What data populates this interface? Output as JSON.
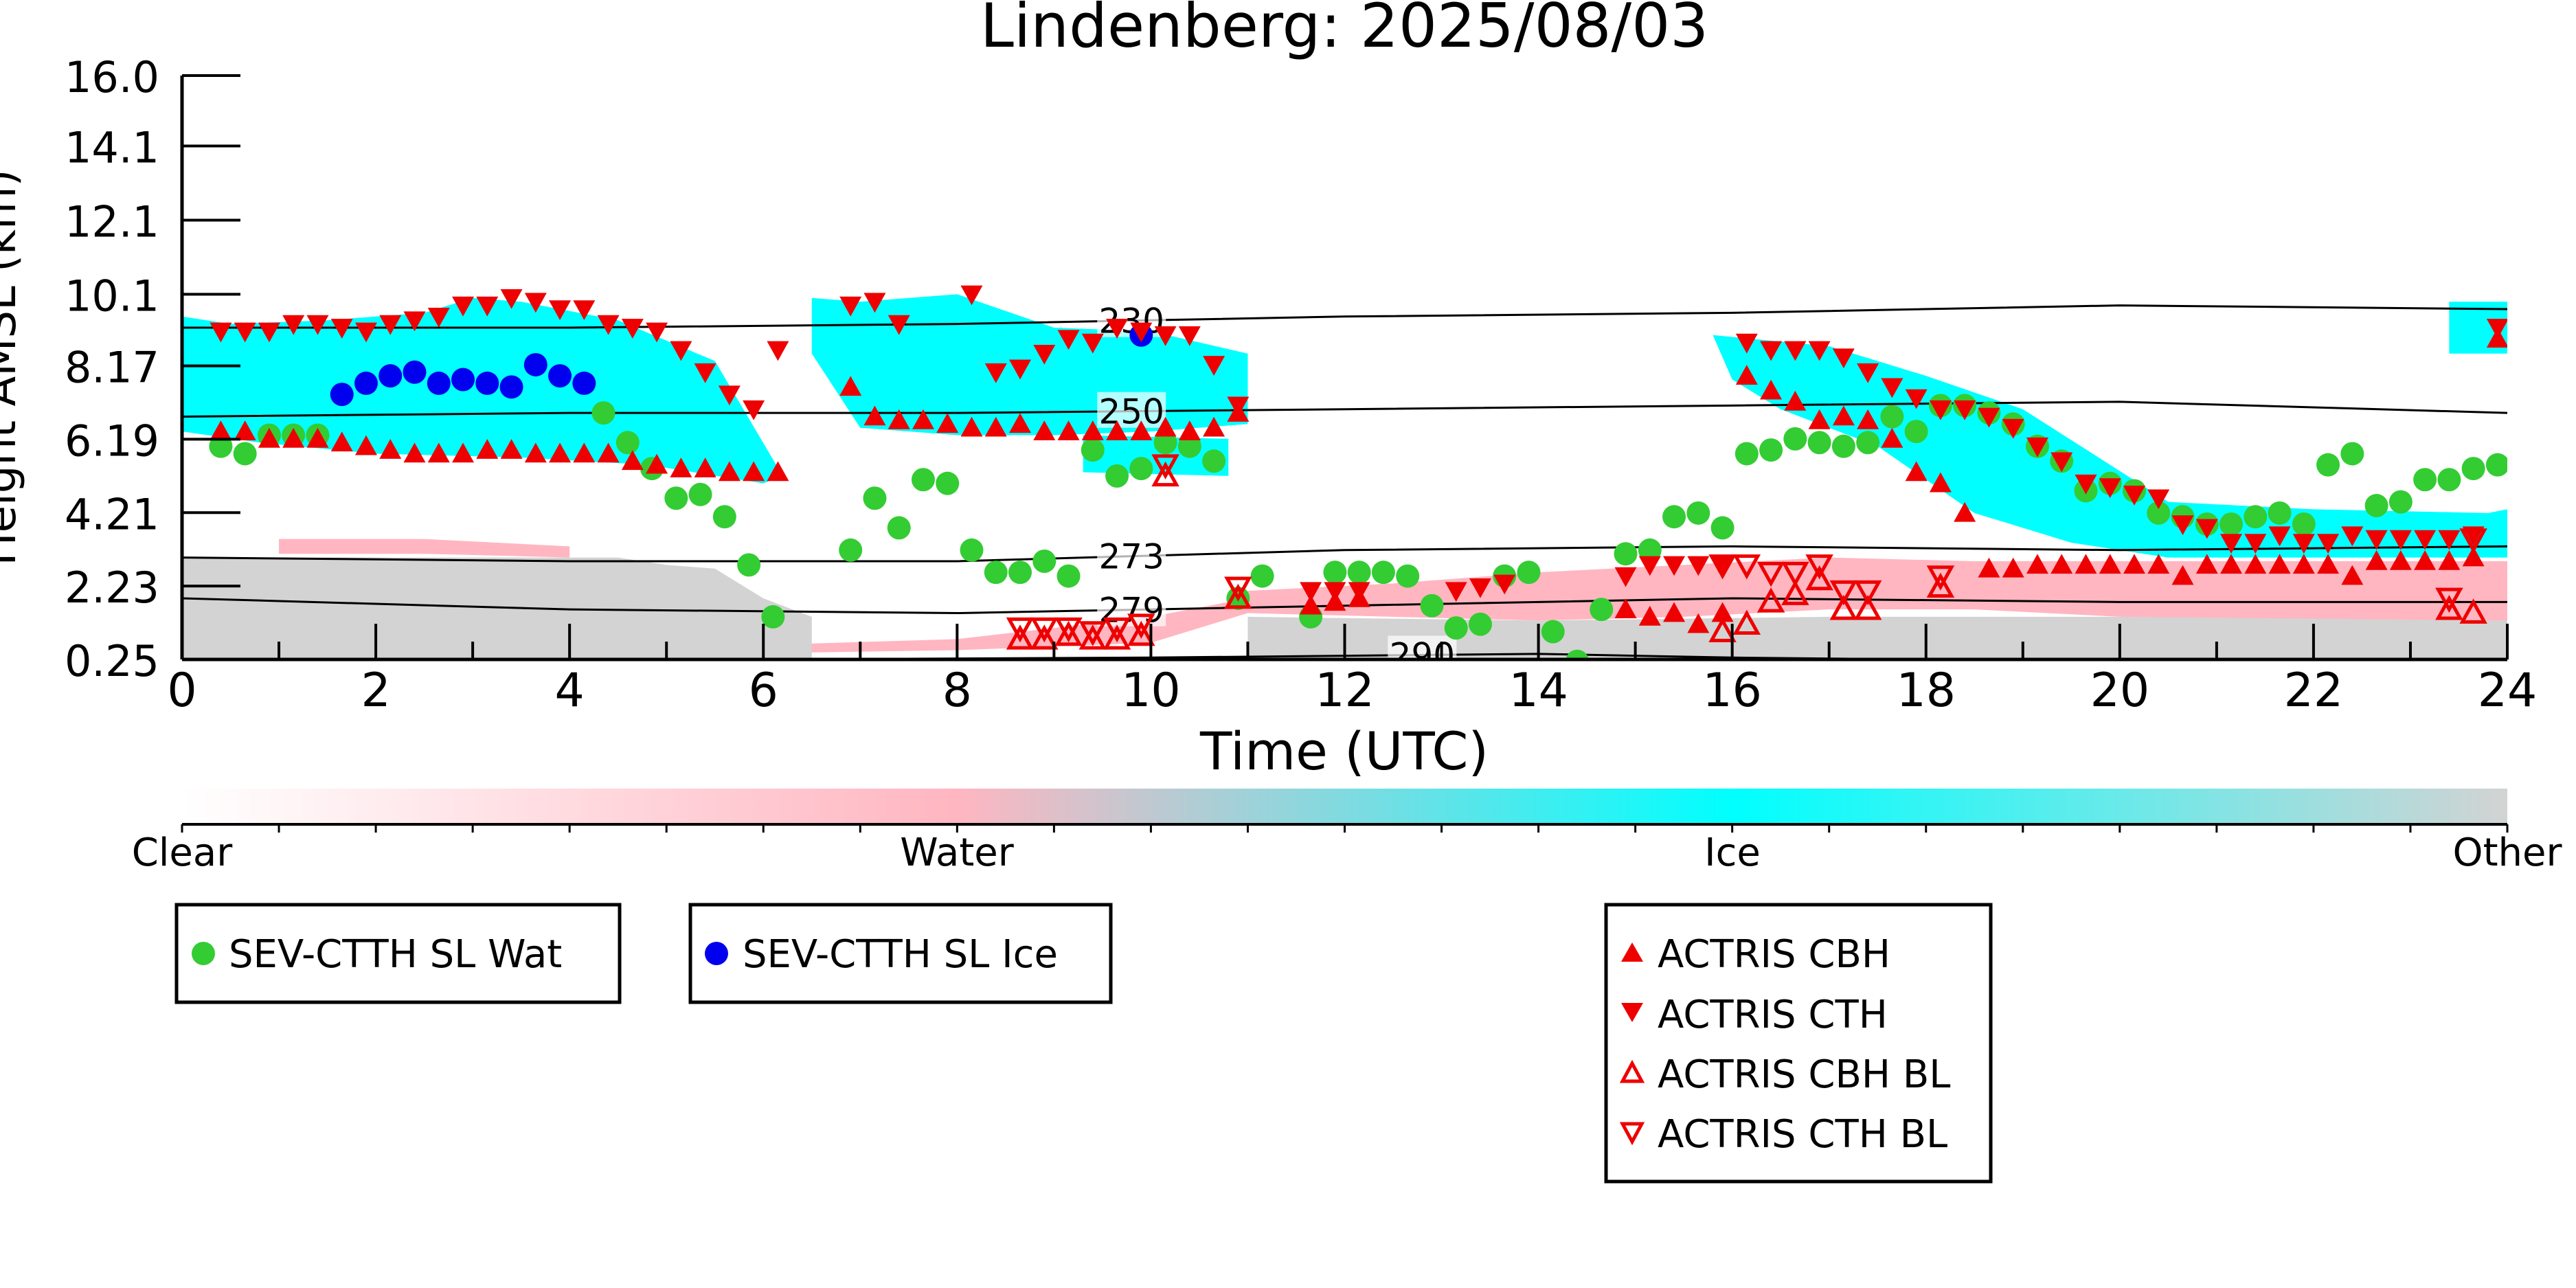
{
  "chart_data": {
    "type": "scatter",
    "title": "Lindenberg: 2025/08/03",
    "xlabel": "Time (UTC)",
    "ylabel": "Height AMSL (km)",
    "xlim": [
      0,
      24
    ],
    "x_ticks": [
      0,
      2,
      4,
      6,
      8,
      10,
      12,
      14,
      16,
      18,
      20,
      22,
      24
    ],
    "y_tick_labels": [
      "16.0",
      "14.1",
      "12.1",
      "10.1",
      "8.17",
      "6.19",
      "4.21",
      "2.23",
      "0.25"
    ],
    "y_tick_values": [
      16.0,
      14.1,
      12.1,
      10.1,
      8.17,
      6.19,
      4.21,
      2.23,
      0.25
    ],
    "ylim": [
      0.25,
      16.0
    ],
    "colorbar": {
      "labels": [
        "Clear",
        "Water",
        "Ice",
        "Other"
      ],
      "colors": [
        "#ffffff",
        "#ffb6c1",
        "#00ffff",
        "#d3d3d3"
      ]
    },
    "contours": [
      {
        "label": "230",
        "x": [
          0,
          4,
          8,
          12,
          16,
          20,
          24
        ],
        "y": [
          9.2,
          9.2,
          9.3,
          9.5,
          9.6,
          9.8,
          9.7
        ]
      },
      {
        "label": "250",
        "x": [
          0,
          4,
          8,
          12,
          16,
          20,
          24
        ],
        "y": [
          6.8,
          6.9,
          6.9,
          7.0,
          7.1,
          7.2,
          6.9
        ]
      },
      {
        "label": "273",
        "x": [
          0,
          4,
          8,
          12,
          16,
          20,
          24
        ],
        "y": [
          3.0,
          2.9,
          2.9,
          3.2,
          3.3,
          3.2,
          3.3
        ]
      },
      {
        "label": "279",
        "x": [
          0,
          4,
          8,
          12,
          16,
          20,
          24
        ],
        "y": [
          1.9,
          1.6,
          1.5,
          1.7,
          1.9,
          1.8,
          1.8
        ]
      },
      {
        "label": "290",
        "x": [
          0,
          6,
          10,
          12,
          14,
          16,
          18
        ],
        "y": [
          0.25,
          0.25,
          0.3,
          0.35,
          0.4,
          0.3,
          0.25
        ]
      }
    ],
    "series": [
      {
        "name": "SEV-CTTH SL Wat",
        "color": "#33cc33",
        "marker": "circle",
        "x": [
          0.4,
          0.65,
          0.9,
          1.15,
          1.4,
          4.35,
          4.6,
          4.85,
          5.1,
          5.35,
          5.6,
          5.85,
          6.1,
          6.9,
          7.15,
          7.4,
          7.65,
          7.9,
          8.15,
          8.4,
          8.65,
          8.9,
          9.15,
          9.4,
          9.65,
          9.9,
          10.15,
          10.4,
          10.65,
          10.9,
          11.15,
          11.65,
          11.9,
          12.15,
          12.4,
          12.65,
          12.9,
          13.15,
          13.4,
          13.65,
          13.9,
          14.15,
          14.4,
          14.65,
          14.9,
          15.15,
          15.4,
          15.65,
          15.9,
          16.15,
          16.4,
          16.65,
          16.9,
          17.15,
          17.4,
          17.65,
          17.9,
          18.15,
          18.4,
          18.65,
          18.9,
          19.15,
          19.4,
          19.65,
          19.9,
          20.15,
          20.4,
          20.65,
          20.9,
          21.15,
          21.4,
          21.65,
          21.9,
          22.15,
          22.4,
          22.65,
          22.9,
          23.15,
          23.4,
          23.65,
          23.9
        ],
        "y": [
          6.0,
          5.8,
          6.3,
          6.3,
          6.3,
          6.9,
          6.1,
          5.4,
          4.6,
          4.7,
          4.1,
          2.8,
          1.4,
          3.2,
          4.6,
          3.8,
          5.1,
          5.0,
          3.2,
          2.6,
          2.6,
          2.9,
          2.5,
          5.9,
          5.2,
          5.4,
          6.1,
          6.0,
          5.6,
          1.9,
          2.5,
          1.4,
          2.6,
          2.6,
          2.6,
          2.5,
          1.7,
          1.1,
          1.2,
          2.5,
          2.6,
          1.0,
          0.2,
          1.6,
          3.1,
          3.2,
          4.1,
          4.2,
          3.8,
          5.8,
          5.9,
          6.2,
          6.1,
          6.0,
          6.1,
          6.8,
          6.4,
          7.1,
          7.1,
          6.9,
          6.6,
          6.0,
          5.6,
          4.8,
          5.0,
          4.8,
          4.2,
          4.1,
          3.9,
          3.9,
          4.1,
          4.2,
          3.9,
          5.5,
          5.8,
          4.4,
          4.5,
          5.1,
          5.1,
          5.4,
          5.5
        ]
      },
      {
        "name": "SEV-CTTH SL Ice",
        "color": "#0000ee",
        "marker": "circle",
        "x": [
          1.65,
          1.9,
          2.15,
          2.4,
          2.65,
          2.9,
          3.15,
          3.4,
          3.65,
          3.9,
          4.15,
          9.9
        ],
        "y": [
          7.4,
          7.7,
          7.9,
          8.0,
          7.7,
          7.8,
          7.7,
          7.6,
          8.2,
          7.9,
          7.7,
          9.0
        ]
      },
      {
        "name": "ACTRIS CBH",
        "color": "#ee0000",
        "marker": "triangle-up",
        "x": [
          0.4,
          0.65,
          0.9,
          1.15,
          1.4,
          1.65,
          1.9,
          2.15,
          2.4,
          2.65,
          2.9,
          3.15,
          3.4,
          3.65,
          3.9,
          4.15,
          4.4,
          4.65,
          4.9,
          5.15,
          5.4,
          5.65,
          5.9,
          6.15,
          6.9,
          7.15,
          7.4,
          7.65,
          7.9,
          8.15,
          8.4,
          8.65,
          8.9,
          9.15,
          9.4,
          9.65,
          9.9,
          10.15,
          10.4,
          10.65,
          10.9,
          11.65,
          11.9,
          12.15,
          14.9,
          15.15,
          15.4,
          15.65,
          15.9,
          16.15,
          16.4,
          16.65,
          16.9,
          17.15,
          17.4,
          17.65,
          17.9,
          18.15,
          18.4,
          18.65,
          18.9,
          19.15,
          19.4,
          19.65,
          19.9,
          20.15,
          20.4,
          20.65,
          20.9,
          21.15,
          21.4,
          21.65,
          21.9,
          22.15,
          22.4,
          22.65,
          22.9,
          23.15,
          23.4,
          23.65,
          23.9
        ],
        "y": [
          6.4,
          6.4,
          6.2,
          6.2,
          6.2,
          6.1,
          6.0,
          5.9,
          5.8,
          5.8,
          5.8,
          5.9,
          5.9,
          5.8,
          5.8,
          5.8,
          5.8,
          5.6,
          5.5,
          5.4,
          5.4,
          5.3,
          5.3,
          5.3,
          7.6,
          6.8,
          6.7,
          6.7,
          6.6,
          6.5,
          6.5,
          6.6,
          6.4,
          6.4,
          6.4,
          6.4,
          6.4,
          6.5,
          6.4,
          6.5,
          6.9,
          1.7,
          1.8,
          1.9,
          1.6,
          1.4,
          1.5,
          1.2,
          1.5,
          7.9,
          7.5,
          7.2,
          6.7,
          6.8,
          6.7,
          6.2,
          5.3,
          5.0,
          4.2,
          2.7,
          2.7,
          2.8,
          2.8,
          2.8,
          2.8,
          2.8,
          2.8,
          2.5,
          2.8,
          2.8,
          2.8,
          2.8,
          2.8,
          2.8,
          2.5,
          2.9,
          2.9,
          2.9,
          2.9,
          3.0,
          8.9
        ]
      },
      {
        "name": "ACTRIS CTH",
        "color": "#ee0000",
        "marker": "triangle-down",
        "x": [
          0.4,
          0.65,
          0.9,
          1.15,
          1.4,
          1.65,
          1.9,
          2.15,
          2.4,
          2.65,
          2.9,
          3.15,
          3.4,
          3.65,
          3.9,
          4.15,
          4.4,
          4.65,
          4.9,
          5.15,
          5.4,
          5.65,
          5.9,
          6.15,
          6.9,
          7.15,
          7.4,
          8.15,
          8.4,
          8.65,
          8.9,
          9.15,
          9.4,
          9.65,
          9.9,
          10.15,
          10.4,
          10.65,
          10.9,
          11.65,
          11.9,
          12.15,
          13.15,
          13.4,
          13.65,
          14.9,
          15.15,
          15.4,
          15.65,
          15.9,
          16.15,
          16.4,
          16.65,
          16.9,
          17.15,
          17.4,
          17.65,
          17.9,
          18.15,
          18.4,
          18.65,
          18.9,
          19.15,
          19.4,
          19.65,
          19.9,
          20.15,
          20.4,
          20.65,
          20.9,
          21.15,
          21.4,
          21.65,
          21.9,
          22.15,
          22.4,
          22.65,
          22.9,
          23.15,
          23.4,
          23.65,
          23.9
        ],
        "y": [
          9.1,
          9.1,
          9.1,
          9.3,
          9.3,
          9.2,
          9.1,
          9.3,
          9.4,
          9.5,
          9.8,
          9.8,
          10.0,
          9.9,
          9.7,
          9.7,
          9.3,
          9.2,
          9.1,
          8.6,
          8.0,
          7.4,
          7.0,
          8.6,
          9.8,
          9.9,
          9.3,
          10.1,
          8.0,
          8.1,
          8.5,
          8.9,
          8.8,
          9.2,
          9.1,
          9.0,
          9.0,
          8.2,
          7.1,
          2.1,
          2.1,
          2.1,
          2.1,
          2.2,
          2.3,
          2.5,
          2.8,
          2.8,
          2.8,
          2.8,
          8.8,
          8.6,
          8.6,
          8.6,
          8.4,
          8.0,
          7.6,
          7.3,
          7.0,
          7.0,
          6.8,
          6.5,
          6.0,
          5.6,
          5.0,
          4.9,
          4.7,
          4.6,
          3.9,
          3.8,
          3.4,
          3.4,
          3.6,
          3.4,
          3.4,
          3.6,
          3.5,
          3.5,
          3.5,
          3.5,
          3.6,
          9.2
        ]
      },
      {
        "name": "ACTRIS CBH BL",
        "color": "#ee0000",
        "marker": "triangle-up-open",
        "x": [
          8.65,
          8.9,
          9.15,
          9.4,
          9.65,
          9.9,
          10.15,
          10.9,
          15.9,
          16.15,
          16.4,
          16.65,
          16.9,
          17.15,
          17.4,
          18.15,
          23.4,
          23.65
        ],
        "y": [
          0.8,
          0.8,
          0.9,
          0.8,
          0.8,
          0.9,
          5.2,
          1.9,
          1.0,
          1.2,
          1.8,
          2.0,
          2.4,
          1.6,
          1.6,
          2.2,
          1.6,
          1.5
        ]
      },
      {
        "name": "ACTRIS CTH BL",
        "color": "#ee0000",
        "marker": "triangle-down-open",
        "x": [
          8.65,
          8.9,
          9.15,
          9.4,
          9.65,
          9.9,
          10.15,
          10.9,
          15.9,
          16.15,
          16.4,
          16.65,
          16.9,
          17.15,
          17.4,
          18.15,
          23.4,
          23.65
        ],
        "y": [
          1.1,
          1.1,
          1.1,
          1.0,
          1.1,
          1.2,
          5.5,
          2.2,
          2.8,
          2.8,
          2.6,
          2.6,
          2.8,
          2.1,
          2.1,
          2.5,
          1.9,
          3.5
        ]
      }
    ],
    "legend": [
      {
        "label": "SEV-CTTH SL Wat",
        "marker": "circle",
        "color": "#33cc33"
      },
      {
        "label": "SEV-CTTH SL Ice",
        "marker": "circle",
        "color": "#0000ee"
      },
      {
        "label": "ACTRIS CBH",
        "marker": "triangle-up",
        "color": "#ee0000"
      },
      {
        "label": "ACTRIS CTH",
        "marker": "triangle-down",
        "color": "#ee0000"
      },
      {
        "label": "ACTRIS CBH BL",
        "marker": "triangle-up-open",
        "color": "#ee0000"
      },
      {
        "label": "ACTRIS CTH BL",
        "marker": "triangle-down-open",
        "color": "#ee0000"
      }
    ],
    "cloud_regions": [
      {
        "phase": "Ice",
        "color": "#00ffff",
        "x": [
          0.0,
          0.5,
          1.5,
          2.5,
          3.0,
          3.5,
          4.5,
          5.5,
          6.2,
          6.0,
          4.8,
          3.5,
          2.0,
          0.8,
          0.0
        ],
        "y": [
          9.5,
          9.3,
          9.4,
          9.6,
          10.0,
          9.9,
          9.4,
          8.3,
          5.2,
          5.0,
          5.5,
          5.7,
          5.8,
          6.1,
          6.4
        ]
      },
      {
        "phase": "Ice",
        "color": "#00ffff",
        "x": [
          6.5,
          7.0,
          8.0,
          9.0,
          10.0,
          11.0,
          11.0,
          10.0,
          9.0,
          8.0,
          7.0,
          6.5
        ],
        "y": [
          10.0,
          9.9,
          10.1,
          9.2,
          9.1,
          8.5,
          6.6,
          6.4,
          6.3,
          6.3,
          6.5,
          8.5
        ]
      },
      {
        "phase": "Ice",
        "color": "#00ffff",
        "x": [
          9.3,
          10.8,
          10.8,
          9.3
        ],
        "y": [
          6.3,
          6.2,
          5.2,
          5.3
        ]
      },
      {
        "phase": "Ice",
        "color": "#00ffff",
        "x": [
          15.8,
          17.0,
          18.0,
          19.0,
          19.6,
          20.5,
          22.0,
          23.8,
          24.0,
          24.0,
          22.0,
          20.5,
          19.5,
          18.5,
          17.5,
          16.5,
          16.0
        ],
        "y": [
          9.0,
          8.7,
          7.9,
          7.0,
          6.0,
          4.5,
          4.3,
          4.2,
          4.3,
          3.0,
          3.0,
          3.0,
          3.4,
          4.2,
          6.0,
          7.0,
          7.8
        ]
      },
      {
        "phase": "Ice",
        "color": "#00ffff",
        "x": [
          23.4,
          24.0,
          24.0,
          23.4
        ],
        "y": [
          9.9,
          9.9,
          8.5,
          8.5
        ]
      },
      {
        "phase": "Water",
        "color": "#ffb6c1",
        "x": [
          1.0,
          2.5,
          4.0,
          4.0,
          2.5,
          1.0
        ],
        "y": [
          3.5,
          3.5,
          3.3,
          3.0,
          3.1,
          3.1
        ]
      },
      {
        "phase": "Water",
        "color": "#ffb6c1",
        "x": [
          5.5,
          8.0,
          10.0,
          11.0,
          11.0,
          10.0,
          8.0,
          5.5
        ],
        "y": [
          0.6,
          0.8,
          1.4,
          1.9,
          1.5,
          0.7,
          0.5,
          0.4
        ]
      },
      {
        "phase": "Water",
        "color": "#ffb6c1",
        "x": [
          11.0,
          12.5,
          14.0,
          15.5,
          17.0,
          18.5,
          20.0,
          22.0,
          24.0,
          24.0,
          22.0,
          20.0,
          18.5,
          17.0,
          15.5,
          14.0,
          12.5,
          11.0
        ],
        "y": [
          2.1,
          2.3,
          2.6,
          2.8,
          3.0,
          2.9,
          2.9,
          2.9,
          2.9,
          1.3,
          1.3,
          1.4,
          1.6,
          1.6,
          1.4,
          1.3,
          1.4,
          1.5
        ]
      },
      {
        "phase": "Other",
        "color": "#d3d3d3",
        "x": [
          0.0,
          4.5,
          5.0,
          5.5,
          6.0,
          6.5,
          6.5,
          6.0,
          5.0,
          4.0,
          0.0
        ],
        "y": [
          3.0,
          3.0,
          2.8,
          2.7,
          1.9,
          1.4,
          0.25,
          0.25,
          0.25,
          0.25,
          0.25
        ]
      },
      {
        "phase": "Other",
        "color": "#d3d3d3",
        "x": [
          11.0,
          14.0,
          17.0,
          20.0,
          24.0,
          24.0,
          20.0,
          17.0,
          14.0,
          11.0
        ],
        "y": [
          1.4,
          1.3,
          1.4,
          1.4,
          1.3,
          0.25,
          0.25,
          0.25,
          0.25,
          0.25
        ]
      }
    ]
  }
}
